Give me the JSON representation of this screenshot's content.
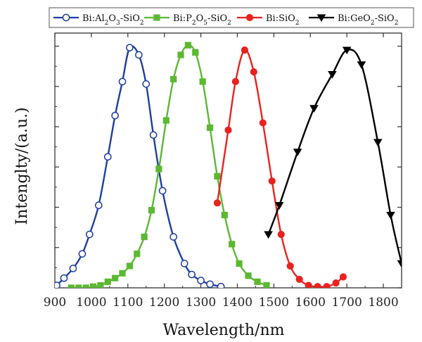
{
  "chart_data": {
    "type": "line",
    "title": "",
    "xlabel": "Wavelength/nm",
    "ylabel": "Intenglty/(a.u.)",
    "xlim": [
      900,
      1850
    ],
    "ylim": [
      0,
      1.05
    ],
    "xticks": [
      900,
      1000,
      1100,
      1200,
      1300,
      1400,
      1500,
      1600,
      1700,
      1800
    ],
    "legend_position": "top",
    "series": [
      {
        "name": "Bi:Al2O3-SiO2",
        "legend_parts": [
          [
            "Bi:Al",
            ""
          ],
          [
            "2",
            "sub"
          ],
          [
            "O",
            ""
          ],
          [
            "3",
            "sub"
          ],
          [
            "-SiO",
            ""
          ],
          [
            "2",
            "sub"
          ]
        ],
        "color": "#1f3f9e",
        "marker": "circle-open",
        "x": [
          905,
          925,
          950,
          975,
          995,
          1020,
          1045,
          1065,
          1085,
          1105,
          1130,
          1150,
          1170,
          1195,
          1225,
          1255,
          1275,
          1300,
          1325,
          1355
        ],
        "y": [
          0.01,
          0.04,
          0.08,
          0.14,
          0.22,
          0.34,
          0.54,
          0.71,
          0.85,
          0.99,
          0.96,
          0.84,
          0.63,
          0.4,
          0.21,
          0.1,
          0.055,
          0.03,
          0.015,
          0.005
        ]
      },
      {
        "name": "Bi:P2O5-SiO2",
        "legend_parts": [
          [
            "Bi:P",
            ""
          ],
          [
            "2",
            "sub"
          ],
          [
            "O",
            ""
          ],
          [
            "5",
            "sub"
          ],
          [
            "-SiO",
            ""
          ],
          [
            "2",
            "sub"
          ]
        ],
        "color": "#5cb832",
        "marker": "square",
        "x": [
          945,
          965,
          985,
          1005,
          1025,
          1045,
          1065,
          1085,
          1105,
          1125,
          1145,
          1165,
          1185,
          1205,
          1225,
          1245,
          1265,
          1285,
          1305,
          1325,
          1345,
          1365,
          1385,
          1405,
          1430,
          1455,
          1480
        ],
        "y": [
          0.0,
          0.0,
          0.0,
          0.005,
          0.01,
          0.025,
          0.04,
          0.06,
          0.09,
          0.14,
          0.21,
          0.32,
          0.49,
          0.69,
          0.86,
          0.96,
          1.0,
          0.97,
          0.85,
          0.66,
          0.46,
          0.3,
          0.18,
          0.1,
          0.05,
          0.025,
          0.01
        ]
      },
      {
        "name": "Bi:SiO2",
        "legend_parts": [
          [
            "Bi:SiO",
            ""
          ],
          [
            "2",
            "sub"
          ]
        ],
        "color": "#e8231f",
        "marker": "circle",
        "x": [
          1345,
          1375,
          1395,
          1420,
          1445,
          1470,
          1495,
          1520,
          1545,
          1570,
          1595,
          1620,
          1645,
          1670,
          1690
        ],
        "y": [
          0.35,
          0.65,
          0.85,
          0.98,
          0.89,
          0.68,
          0.44,
          0.22,
          0.09,
          0.035,
          0.01,
          0.005,
          0.005,
          0.02,
          0.045
        ]
      },
      {
        "name": "Bi:GeO2-SiO2",
        "legend_parts": [
          [
            "Bi:GeO",
            ""
          ],
          [
            "2",
            "sub"
          ],
          [
            "-SiO",
            ""
          ],
          [
            "2",
            "sub"
          ]
        ],
        "color": "#000000",
        "marker": "triangle-down",
        "x": [
          1485,
          1515,
          1565,
          1610,
          1660,
          1700,
          1740,
          1785,
          1820,
          1850
        ],
        "y": [
          0.22,
          0.34,
          0.56,
          0.74,
          0.88,
          0.98,
          0.92,
          0.6,
          0.3,
          0.1
        ]
      }
    ]
  }
}
